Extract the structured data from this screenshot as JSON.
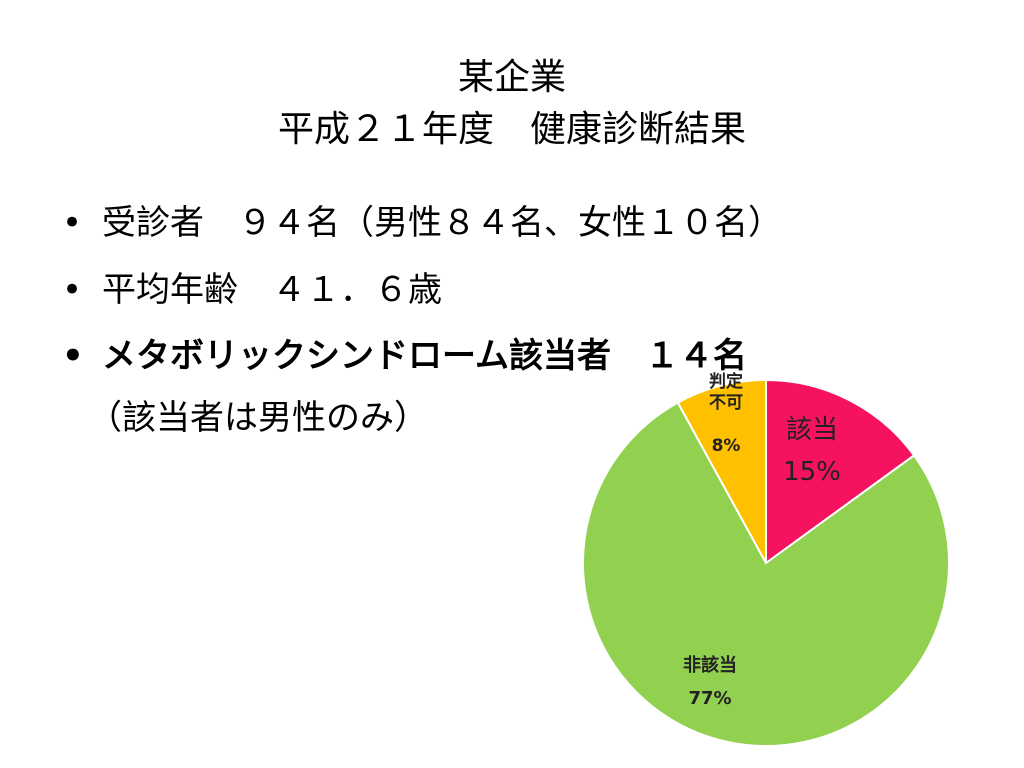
{
  "header": {
    "title": [
      "某企業",
      "平成２１年度　健康診断結果"
    ]
  },
  "bullets": [
    "受診者　９４名（男性８４名、女性１０名）",
    "平均年齢　４１．６歳",
    "メタボリックシンドローム該当者　１４名"
  ],
  "note": "（該当者は男性のみ）",
  "chart_data": {
    "type": "pie",
    "categories": [
      "該当",
      "非該当",
      "判定不可"
    ],
    "values": [
      15,
      77,
      8
    ],
    "value_labels": [
      "15%",
      "77%",
      "8%"
    ],
    "colors": [
      "#f5135f",
      "#92d050",
      "#ffc000"
    ]
  }
}
